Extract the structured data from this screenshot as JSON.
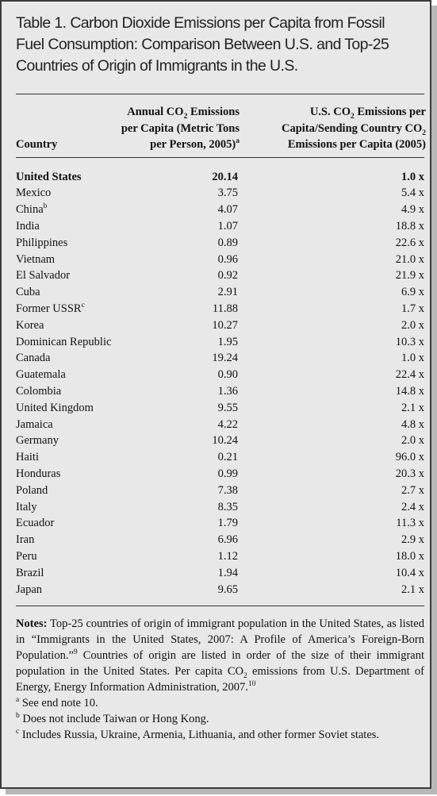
{
  "title": [
    "Table 1. Carbon Dioxide Emissions per Capita from Fossil",
    "Fuel Consumption: Comparison Between U.S. and Top-25",
    "Countries of Origin of Immigrants in the U.S."
  ],
  "header": {
    "country": "Country",
    "emissions": [
      "Annual CO",
      "2",
      " Emissions",
      "per Capita (Metric Tons",
      "per Person, 2005)",
      "a"
    ],
    "ratio": [
      "U.S. CO",
      "2",
      " Emissions per",
      "Capita/Sending Country CO",
      "2",
      "Emissions per Capita (2005)"
    ]
  },
  "rows": [
    {
      "country": "United States",
      "emissions": "20.14",
      "ratio": "1.0 x"
    },
    {
      "country": "Mexico",
      "emissions": "3.75",
      "ratio": "5.4 x"
    },
    {
      "country": "China",
      "footnote": "b",
      "emissions": "4.07",
      "ratio": "4.9 x"
    },
    {
      "country": "India",
      "emissions": "1.07",
      "ratio": "18.8 x"
    },
    {
      "country": "Philippines",
      "emissions": "0.89",
      "ratio": "22.6 x"
    },
    {
      "country": "Vietnam",
      "emissions": "0.96",
      "ratio": "21.0 x"
    },
    {
      "country": "El Salvador",
      "emissions": "0.92",
      "ratio": "21.9 x"
    },
    {
      "country": "Cuba",
      "emissions": "2.91",
      "ratio": "6.9 x"
    },
    {
      "country": "Former USSR",
      "footnote": "c",
      "emissions": "11.88",
      "ratio": "1.7 x"
    },
    {
      "country": "Korea",
      "emissions": "10.27",
      "ratio": "2.0 x"
    },
    {
      "country": "Dominican Republic",
      "emissions": "1.95",
      "ratio": "10.3 x"
    },
    {
      "country": "Canada",
      "emissions": "19.24",
      "ratio": "1.0 x"
    },
    {
      "country": "Guatemala",
      "emissions": "0.90",
      "ratio": "22.4 x"
    },
    {
      "country": "Colombia",
      "emissions": "1.36",
      "ratio": "14.8 x"
    },
    {
      "country": "United Kingdom",
      "emissions": "9.55",
      "ratio": "2.1 x"
    },
    {
      "country": "Jamaica",
      "emissions": "4.22",
      "ratio": "4.8 x"
    },
    {
      "country": "Germany",
      "emissions": "10.24",
      "ratio": "2.0 x"
    },
    {
      "country": "Haiti",
      "emissions": "0.21",
      "ratio": "96.0 x"
    },
    {
      "country": "Honduras",
      "emissions": "0.99",
      "ratio": "20.3 x"
    },
    {
      "country": "Poland",
      "emissions": "7.38",
      "ratio": "2.7 x"
    },
    {
      "country": "Italy",
      "emissions": "8.35",
      "ratio": "2.4 x"
    },
    {
      "country": "Ecuador",
      "emissions": "1.79",
      "ratio": "11.3 x"
    },
    {
      "country": "Iran",
      "emissions": "6.96",
      "ratio": "2.9 x"
    },
    {
      "country": "Peru",
      "emissions": "1.12",
      "ratio": "18.0 x"
    },
    {
      "country": "Brazil",
      "emissions": "1.94",
      "ratio": "10.4 x"
    },
    {
      "country": "Japan",
      "emissions": "9.65",
      "ratio": "2.1 x"
    }
  ],
  "notes": {
    "label": "Notes:",
    "text": [
      " Top-25 countries of origin of immigrant population in the United States, as listed in “Immigrants in the United States, 2007: A Profile of America’s Foreign-Born Population.”",
      "9",
      " Countries of origin are listed in order of the size of their immigrant population in the United States. Per capita CO",
      "2",
      " emissions from U.S. Department of Energy, Energy Information Administration, 2007.",
      "10"
    ],
    "footnotes": [
      {
        "mark": "a",
        "text": " See end note 10."
      },
      {
        "mark": "b",
        "text": " Does not include Taiwan or Hong Kong."
      },
      {
        "mark": "c",
        "text": " Includes Russia, Ukraine, Armenia, Lithuania, and other former Soviet states."
      }
    ]
  }
}
